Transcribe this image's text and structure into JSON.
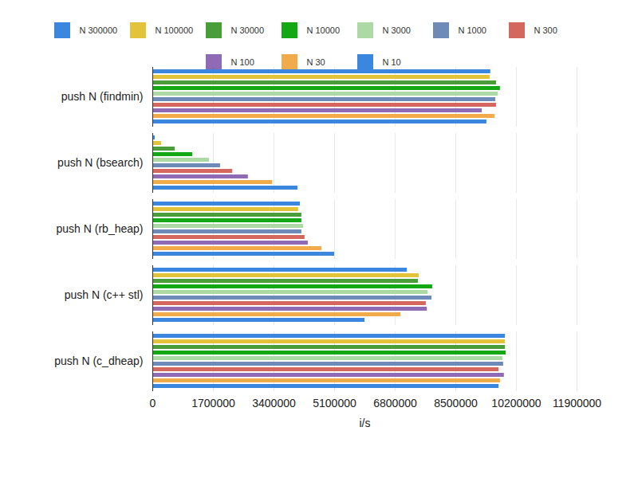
{
  "chart_data": {
    "type": "bar",
    "orientation": "horizontal",
    "grid": true,
    "legend": "top",
    "x_label": "i/s",
    "categories": [
      "push N (findmin)",
      "push N (bsearch)",
      "push N (rb_heap)",
      "push N (c++ stl)",
      "push N (c_dheap)"
    ],
    "xlim": [
      0,
      11900000
    ],
    "xticks": [
      0,
      1700000,
      3400000,
      5100000,
      6800000,
      8500000,
      10200000,
      11900000
    ],
    "series": [
      {
        "name": "N 300000",
        "color": "#3b87e0",
        "values": [
          9480000,
          67000,
          4140000,
          7140000,
          9890000
        ]
      },
      {
        "name": "N 100000",
        "color": "#e3c33a",
        "values": [
          9460000,
          246000,
          4090000,
          7470000,
          9890000
        ]
      },
      {
        "name": "N 30000",
        "color": "#4a9e3a",
        "values": [
          9640000,
          626000,
          4180000,
          7450000,
          9890000
        ]
      },
      {
        "name": "N 10000",
        "color": "#14a814",
        "values": [
          9750000,
          1120000,
          4180000,
          7850000,
          9910000
        ]
      },
      {
        "name": "N 3000",
        "color": "#acd9a4",
        "values": [
          9690000,
          1590000,
          4230000,
          7720000,
          9820000
        ]
      },
      {
        "name": "N 1000",
        "color": "#6e8ab8",
        "values": [
          9620000,
          1900000,
          4180000,
          7830000,
          9840000
        ]
      },
      {
        "name": "N 300",
        "color": "#d4685f",
        "values": [
          9640000,
          2240000,
          4270000,
          7670000,
          9710000
        ]
      },
      {
        "name": "N 100",
        "color": "#8e6bb4",
        "values": [
          9240000,
          2680000,
          4360000,
          7700000,
          9860000
        ]
      },
      {
        "name": "N 30",
        "color": "#f2ab4a",
        "values": [
          9600000,
          3360000,
          4740000,
          6960000,
          9750000
        ]
      },
      {
        "name": "N 10",
        "color": "#3b87e0",
        "values": [
          9370000,
          4070000,
          5100000,
          5950000,
          9710000
        ]
      }
    ]
  }
}
